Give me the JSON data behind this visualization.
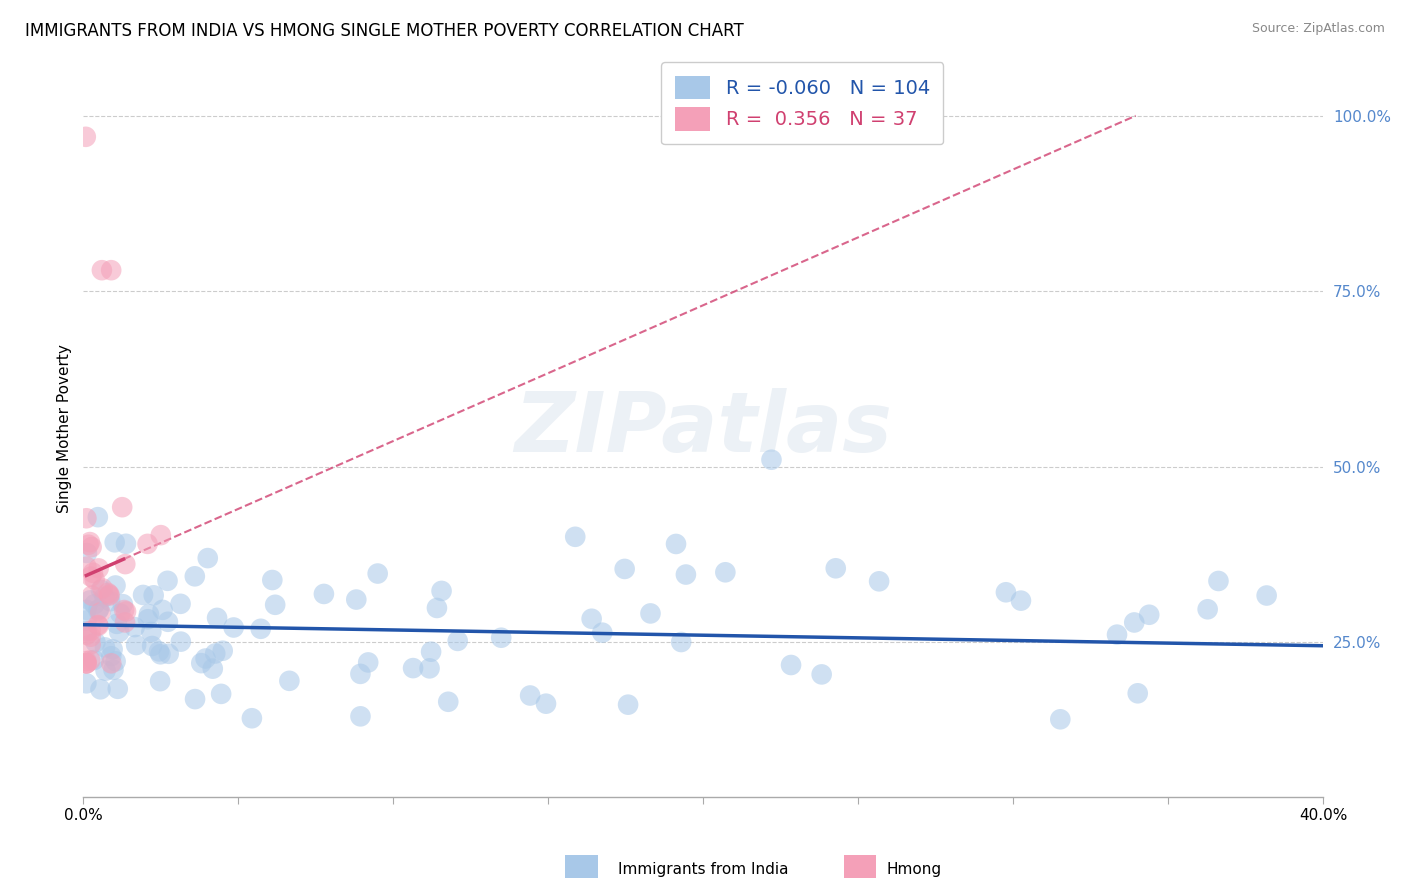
{
  "title": "IMMIGRANTS FROM INDIA VS HMONG SINGLE MOTHER POVERTY CORRELATION CHART",
  "source": "Source: ZipAtlas.com",
  "ylabel": "Single Mother Poverty",
  "xlim": [
    0.0,
    0.4
  ],
  "ylim": [
    0.03,
    1.08
  ],
  "ytick_positions": [
    0.25,
    0.5,
    0.75,
    1.0
  ],
  "ytick_labels": [
    "25.0%",
    "50.0%",
    "75.0%",
    "100.0%"
  ],
  "india_R": -0.06,
  "india_N": 104,
  "hmong_R": 0.356,
  "hmong_N": 37,
  "india_color": "#a8c8e8",
  "hmong_color": "#f4a0b8",
  "india_line_color": "#2255aa",
  "hmong_line_color": "#d04070",
  "india_label": "Immigrants from India",
  "hmong_label": "Hmong",
  "background_color": "#ffffff",
  "grid_color": "#cccccc",
  "title_fontsize": 12,
  "axis_label_fontsize": 11,
  "tick_fontsize": 11,
  "dot_size": 220,
  "dot_alpha": 0.55,
  "legend_fontsize": 14
}
